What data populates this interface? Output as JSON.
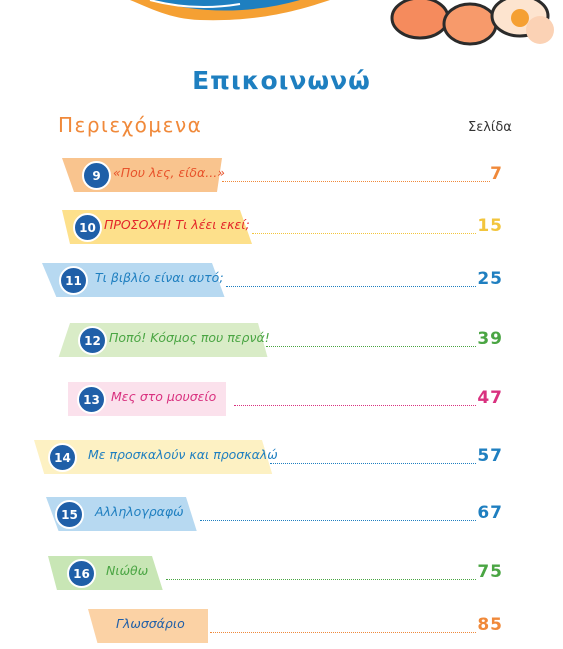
{
  "title": "Επικοινωνώ",
  "contents_heading": "Περιεχόμενα",
  "page_heading": "Σελίδα",
  "chapters": [
    {
      "number": "9",
      "title": "«Που λες, είδα...»",
      "page": "7",
      "color": "#e8532b",
      "tab_color": "#f9c48e"
    },
    {
      "number": "10",
      "title": "ΠΡΟΣΟΧΗ! Τι λέει εκεί;",
      "page": "15",
      "color": "#e3262a",
      "tab_color": "#fde08b"
    },
    {
      "number": "11",
      "title": "Τι βιβλίο είναι αυτό;",
      "page": "25",
      "color": "#1f7fc0",
      "tab_color": "#b7d9f1"
    },
    {
      "number": "12",
      "title": "Ποπό! Κόσμος που περνά!",
      "page": "39",
      "color": "#4aa543",
      "tab_color": "#d9ecc7"
    },
    {
      "number": "13",
      "title": "Μες στο μουσείο",
      "page": "47",
      "color": "#d9317f",
      "tab_color": "#fbe1ec"
    },
    {
      "number": "14",
      "title": "Με προσκαλούν και προσκαλώ",
      "page": "57",
      "color": "#1f7fc0",
      "tab_color": "#fdf1c3"
    },
    {
      "number": "15",
      "title": "Αλληλογραφώ",
      "page": "67",
      "color": "#1f7fc0",
      "tab_color": "#b7d9f1"
    },
    {
      "number": "16",
      "title": "Νιώθω",
      "page": "75",
      "color": "#4aa543",
      "tab_color": "#c8e6b5"
    }
  ],
  "glossary": {
    "title": "Γλωσσάριο",
    "page": "85",
    "color": "#f0893a",
    "tab_color": "#fbd2a5"
  },
  "colors": {
    "accent_blue": "#1e7fc0",
    "accent_orange": "#f0893a",
    "number_badge": "#1f5fa8"
  }
}
